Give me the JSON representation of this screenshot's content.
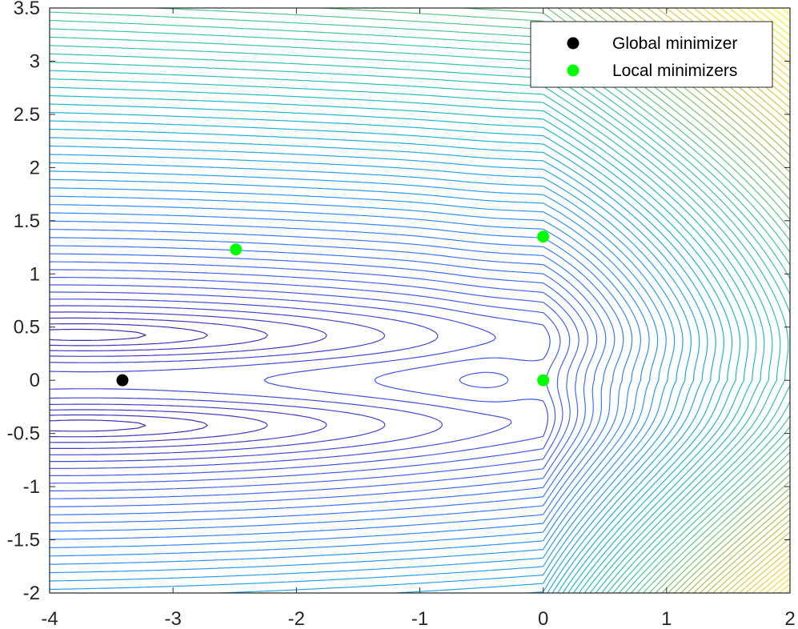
{
  "chart_data": {
    "type": "contour",
    "xlim": [
      -4,
      2
    ],
    "ylim": [
      -2,
      3.5
    ],
    "x_ticks": [
      "-4",
      "-3",
      "-2",
      "-1",
      "0",
      "1",
      "2"
    ],
    "y_ticks": [
      "-2",
      "-1.5",
      "-1",
      "-0.5",
      "0",
      "0.5",
      "1",
      "1.5",
      "2",
      "2.5",
      "3",
      "3.5"
    ],
    "colormap": [
      "#3e26a8",
      "#4362f2",
      "#2c96f2",
      "#1bb7cb",
      "#41c59a",
      "#a4be53",
      "#f1cc3a",
      "#f9fb15"
    ],
    "series": [
      {
        "name": "Global minimizer",
        "color": "#000000",
        "points": [
          {
            "x": -3.41,
            "y": 0
          }
        ]
      },
      {
        "name": "Local minimizers",
        "color": "#00ff00",
        "points": [
          {
            "x": -2.49,
            "y": 1.23
          },
          {
            "x": 0,
            "y": 1.35
          },
          {
            "x": 0,
            "y": 0
          }
        ]
      }
    ],
    "legend_position": "top-right",
    "grid": false
  }
}
